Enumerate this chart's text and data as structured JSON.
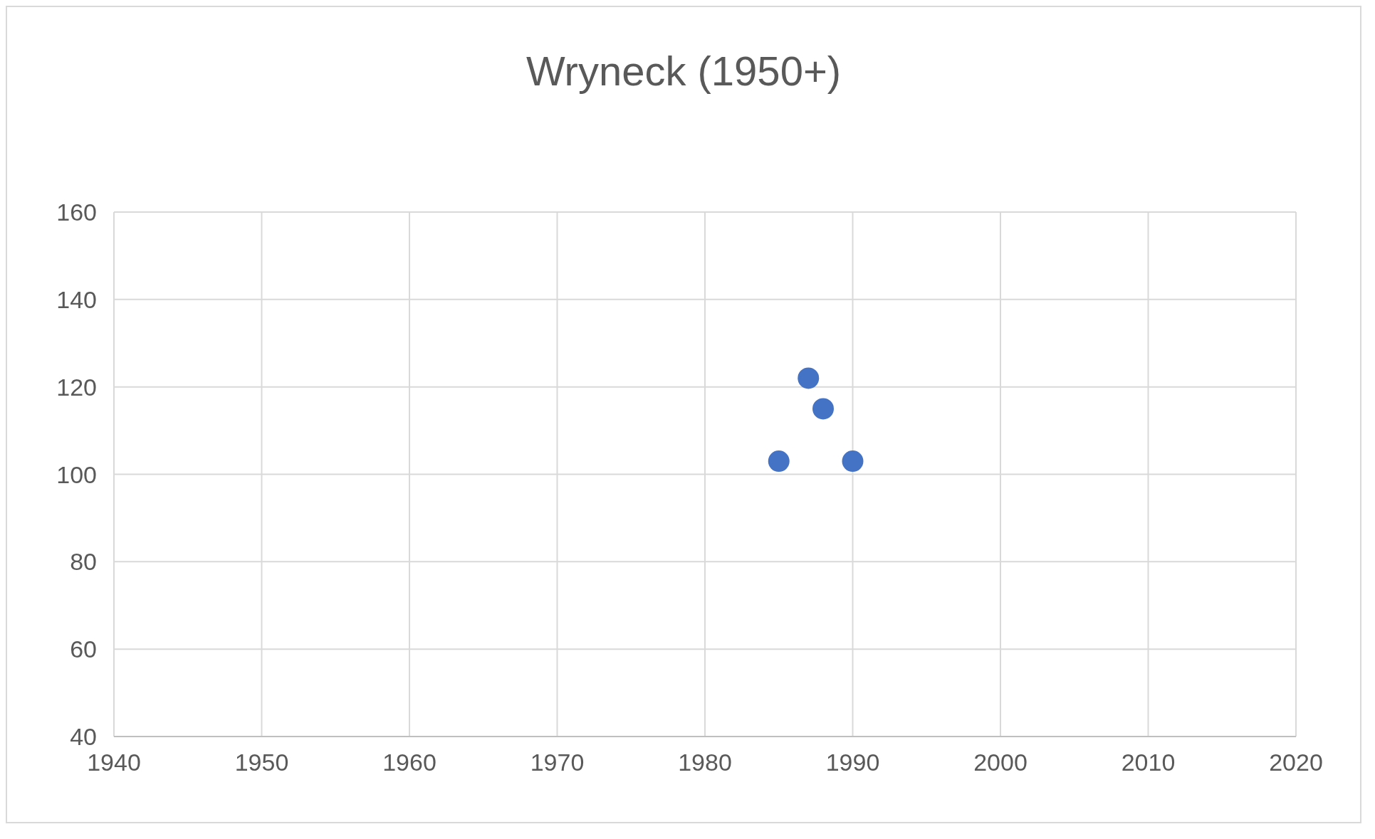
{
  "chart_data": {
    "type": "scatter",
    "title": "Wryneck (1950+)",
    "x": [
      1985,
      1987,
      1988,
      1990
    ],
    "values": [
      103,
      122,
      115,
      103
    ],
    "color": "#4472c4",
    "marker": "circle",
    "xlim": [
      1940,
      2020
    ],
    "xticks": [
      1940,
      1950,
      1960,
      1970,
      1980,
      1990,
      2000,
      2010,
      2020
    ],
    "ylim": [
      40,
      160
    ],
    "yticks": [
      40,
      60,
      80,
      100,
      120,
      140,
      160
    ],
    "grid": true
  }
}
